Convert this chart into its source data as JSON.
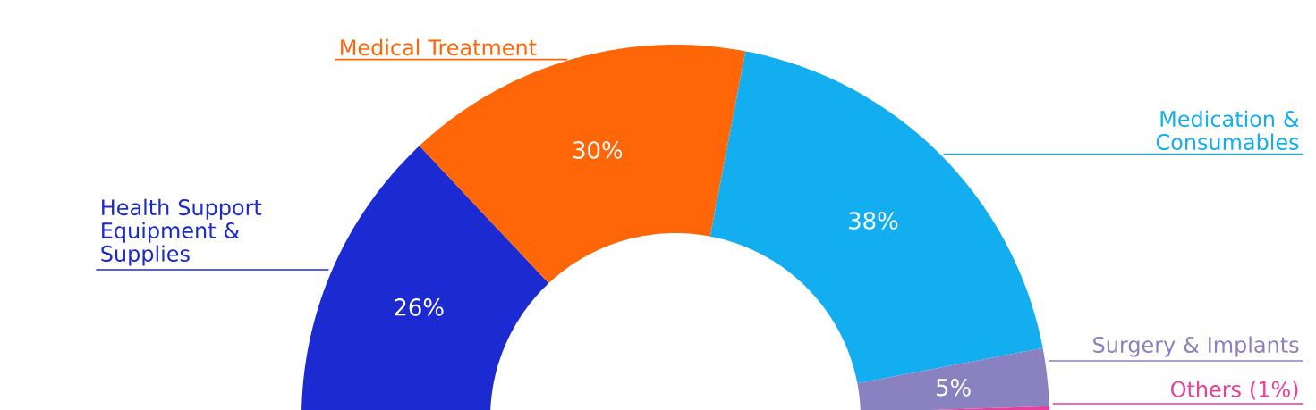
{
  "chart_data": {
    "type": "donut",
    "categories": [
      "Health Support Equipment & Supplies",
      "Medical Treatment",
      "Medication & Consumables",
      "Surgery & Implants",
      "Others (1%)"
    ],
    "values": [
      26,
      30,
      38,
      5,
      1
    ],
    "colors": [
      "#1c2bd1",
      "#ff6608",
      "#12aef0",
      "#8a82c0",
      "#e8409a"
    ],
    "value_labels": [
      "26%",
      "30%",
      "38%",
      "5%",
      null
    ]
  }
}
